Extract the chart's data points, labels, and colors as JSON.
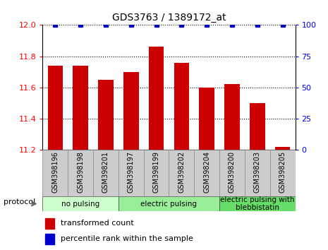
{
  "title": "GDS3763 / 1389172_at",
  "samples": [
    "GSM398196",
    "GSM398198",
    "GSM398201",
    "GSM398197",
    "GSM398199",
    "GSM398202",
    "GSM398204",
    "GSM398200",
    "GSM398203",
    "GSM398205"
  ],
  "bar_values": [
    11.74,
    11.74,
    11.65,
    11.7,
    11.86,
    11.76,
    11.6,
    11.62,
    11.5,
    11.22
  ],
  "percentile_values": [
    100,
    100,
    100,
    100,
    100,
    100,
    100,
    100,
    100,
    100
  ],
  "ylim_left": [
    11.2,
    12.0
  ],
  "ylim_right": [
    0,
    100
  ],
  "yticks_left": [
    11.2,
    11.4,
    11.6,
    11.8,
    12.0
  ],
  "yticks_right": [
    0,
    25,
    50,
    75,
    100
  ],
  "bar_color": "#cc0000",
  "percentile_color": "#0000cc",
  "bg_color": "#ffffff",
  "plot_bg_color": "#ffffff",
  "grid_color": "#000000",
  "groups": [
    {
      "label": "no pulsing",
      "start": 0,
      "end": 3,
      "color": "#ccffcc"
    },
    {
      "label": "electric pulsing",
      "start": 3,
      "end": 7,
      "color": "#99ee99"
    },
    {
      "label": "electric pulsing with\nblebbistatin",
      "start": 7,
      "end": 10,
      "color": "#66dd66"
    }
  ],
  "legend_items": [
    {
      "color": "#cc0000",
      "label": "transformed count"
    },
    {
      "color": "#0000cc",
      "label": "percentile rank within the sample"
    }
  ],
  "protocol_label": "protocol",
  "title_fontsize": 10,
  "tick_fontsize": 8,
  "sample_fontsize": 7,
  "group_fontsize": 7.5
}
